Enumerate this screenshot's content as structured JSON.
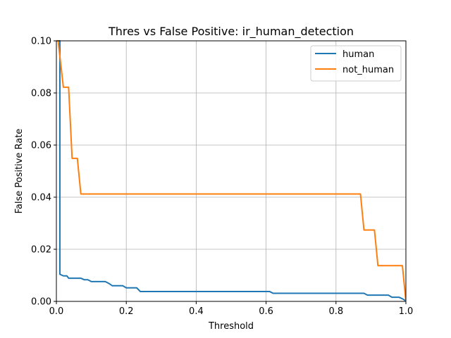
{
  "chart_data": {
    "type": "line",
    "title": "Thres vs False Positive: ir_human_detection",
    "xlabel": "Threshold",
    "ylabel": "False Positive Rate",
    "xlim": [
      0,
      1
    ],
    "ylim": [
      0,
      0.1
    ],
    "xticks": [
      "0.0",
      "0.2",
      "0.4",
      "0.6",
      "0.8",
      "1.0"
    ],
    "yticks": [
      "0.00",
      "0.02",
      "0.04",
      "0.06",
      "0.08",
      "0.10"
    ],
    "grid": true,
    "legend_position": "top-right",
    "series": [
      {
        "name": "human",
        "color": "#1f77b4",
        "x": [
          0.0,
          0.01,
          0.01,
          0.02,
          0.03,
          0.035,
          0.07,
          0.08,
          0.09,
          0.1,
          0.11,
          0.14,
          0.15,
          0.16,
          0.19,
          0.2,
          0.23,
          0.24,
          0.61,
          0.62,
          0.88,
          0.89,
          0.95,
          0.96,
          0.98,
          0.99,
          1.0
        ],
        "y": [
          0.1,
          0.1,
          0.0104,
          0.0098,
          0.0098,
          0.0089,
          0.0089,
          0.0083,
          0.0083,
          0.0076,
          0.0076,
          0.0076,
          0.0069,
          0.006,
          0.006,
          0.0052,
          0.0052,
          0.0038,
          0.0038,
          0.0031,
          0.0031,
          0.0024,
          0.0024,
          0.0016,
          0.0016,
          0.001,
          0.0002
        ]
      },
      {
        "name": "not_human",
        "color": "#ff7f0e",
        "x": [
          0.0,
          0.005,
          0.02,
          0.035,
          0.045,
          0.05,
          0.06,
          0.07,
          0.87,
          0.88,
          0.9,
          0.91,
          0.92,
          0.98,
          0.99,
          1.0
        ],
        "y": [
          0.1,
          0.1,
          0.0822,
          0.0822,
          0.0549,
          0.0549,
          0.0549,
          0.0412,
          0.0412,
          0.0274,
          0.0274,
          0.0274,
          0.0137,
          0.0137,
          0.0137,
          0.0
        ]
      }
    ]
  }
}
